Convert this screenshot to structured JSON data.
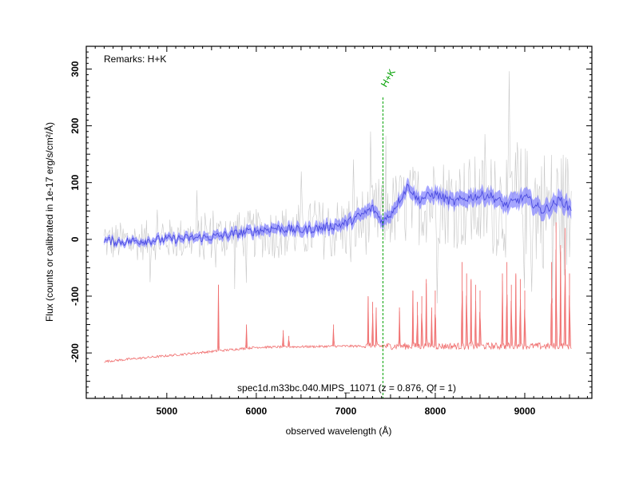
{
  "chart_data": {
    "type": "line",
    "xlabel": "observed wavelength (Å)",
    "ylabel": "Flux (counts or calibrated in 1e-17 erg/s/cm²/Å)",
    "xlim": [
      4100,
      9750
    ],
    "ylim": [
      -280,
      340
    ],
    "x_ticks": [
      5000,
      6000,
      7000,
      8000,
      9000
    ],
    "y_ticks": [
      -200,
      -100,
      0,
      100,
      200,
      300
    ],
    "grid": false,
    "remarks": "Remarks: H+K",
    "caption": "spec1d.m33bc.040.MIPS_11071 (z = 0.876, Qf = 1)",
    "line_marks": [
      {
        "label": "H+K",
        "x": 7415,
        "y_top": 250,
        "color": "#00a000"
      }
    ],
    "series": [
      {
        "role": "raw",
        "color": "#c8c8c8",
        "x_range": [
          4300,
          9520
        ],
        "points": 520,
        "noise_base": 35,
        "noise_growth": 85,
        "trend": [
          [
            4300,
            -5
          ],
          [
            5000,
            0
          ],
          [
            6000,
            10
          ],
          [
            7000,
            20
          ],
          [
            7500,
            50
          ],
          [
            8000,
            70
          ],
          [
            8500,
            60
          ],
          [
            9000,
            65
          ],
          [
            9500,
            45
          ]
        ]
      },
      {
        "role": "smoothed",
        "color": "#4a4ae0",
        "fill": "#8080ff",
        "x_range": [
          4300,
          9520
        ],
        "trend": [
          [
            4300,
            -2
          ],
          [
            4500,
            -4
          ],
          [
            5000,
            0
          ],
          [
            5500,
            4
          ],
          [
            6000,
            15
          ],
          [
            6200,
            20
          ],
          [
            6500,
            16
          ],
          [
            6800,
            22
          ],
          [
            7000,
            28
          ],
          [
            7200,
            45
          ],
          [
            7300,
            55
          ],
          [
            7415,
            30
          ],
          [
            7500,
            45
          ],
          [
            7700,
            95
          ],
          [
            7800,
            70
          ],
          [
            8000,
            80
          ],
          [
            8200,
            65
          ],
          [
            8400,
            75
          ],
          [
            8600,
            78
          ],
          [
            8800,
            60
          ],
          [
            9000,
            75
          ],
          [
            9200,
            50
          ],
          [
            9400,
            70
          ],
          [
            9500,
            55
          ]
        ],
        "wiggle": 8
      },
      {
        "role": "sky",
        "color": "#f07070",
        "x_range": [
          4300,
          9520
        ],
        "baseline": [
          [
            4300,
            -215
          ],
          [
            5000,
            -205
          ],
          [
            6000,
            -190
          ],
          [
            7000,
            -188
          ],
          [
            8000,
            -188
          ],
          [
            9000,
            -188
          ],
          [
            9500,
            -188
          ]
        ],
        "lines": [
          [
            5577,
            -80
          ],
          [
            5890,
            -150
          ],
          [
            6300,
            -160
          ],
          [
            6364,
            -170
          ],
          [
            6863,
            -150
          ],
          [
            7250,
            -100
          ],
          [
            7300,
            -110
          ],
          [
            7340,
            -120
          ],
          [
            7600,
            -120
          ],
          [
            7750,
            -90
          ],
          [
            7800,
            -110
          ],
          [
            7850,
            -100
          ],
          [
            7900,
            -70
          ],
          [
            7960,
            -120
          ],
          [
            8000,
            -90
          ],
          [
            8300,
            -40
          ],
          [
            8350,
            -60
          ],
          [
            8400,
            -70
          ],
          [
            8450,
            -80
          ],
          [
            8500,
            -90
          ],
          [
            8750,
            -60
          ],
          [
            8800,
            -40
          ],
          [
            8850,
            -80
          ],
          [
            8900,
            -60
          ],
          [
            8950,
            -70
          ],
          [
            9000,
            -90
          ],
          [
            9300,
            -40
          ],
          [
            9350,
            30
          ],
          [
            9400,
            -10
          ],
          [
            9450,
            20
          ],
          [
            9500,
            -60
          ]
        ]
      }
    ]
  }
}
